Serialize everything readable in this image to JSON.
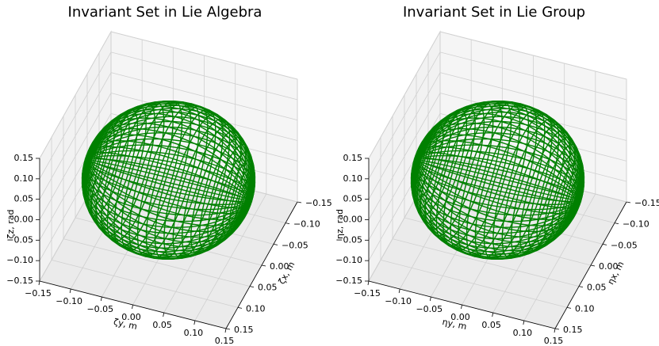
{
  "chart_data": [
    {
      "type": "wireframe3d",
      "title": "Invariant Set in Lie Algebra",
      "xlabel": "ζx, m",
      "ylabel": "ζy, m",
      "zlabel": "ζz, rad",
      "xlim": [
        -0.15,
        0.15
      ],
      "ylim": [
        -0.15,
        0.15
      ],
      "zlim": [
        -0.15,
        0.15
      ],
      "xticks": [
        {
          "value": -0.15,
          "label": "−0.15"
        },
        {
          "value": -0.1,
          "label": "−0.10"
        },
        {
          "value": -0.05,
          "label": "−0.05"
        },
        {
          "value": 0,
          "label": "0.00"
        },
        0.05,
        {
          "value": 0.1,
          "label": "0.10"
        },
        0.15
      ],
      "yticks": [
        {
          "value": -0.15,
          "label": "−0.15"
        },
        {
          "value": -0.1,
          "label": "−0.10"
        },
        {
          "value": -0.05,
          "label": "−0.05"
        },
        {
          "value": 0,
          "label": "0.00"
        },
        0.05,
        {
          "value": 0.1,
          "label": "0.10"
        },
        0.15
      ],
      "zticks": [
        {
          "value": -0.15,
          "label": "−0.15"
        },
        {
          "value": -0.1,
          "label": "−0.10"
        },
        {
          "value": -0.05,
          "label": "−0.05"
        },
        {
          "value": 0,
          "label": "0.00"
        },
        0.05,
        {
          "value": 0.1,
          "label": "0.10"
        },
        0.15
      ],
      "semi_axes": [
        0.13,
        0.13,
        0.13
      ],
      "color": "green",
      "grid": true
    },
    {
      "type": "wireframe3d",
      "title": "Invariant Set in Lie Group",
      "xlabel": "ηx, m",
      "ylabel": "ηy, m",
      "zlabel": "ηz, rad",
      "xlim": [
        -0.15,
        0.15
      ],
      "ylim": [
        -0.15,
        0.15
      ],
      "zlim": [
        -0.15,
        0.15
      ],
      "xticks": [
        {
          "value": -0.15,
          "label": "−0.15"
        },
        {
          "value": -0.1,
          "label": "−0.10"
        },
        {
          "value": -0.05,
          "label": "−0.05"
        },
        {
          "value": 0,
          "label": "0.00"
        },
        0.05,
        {
          "value": 0.1,
          "label": "0.10"
        },
        0.15
      ],
      "yticks": [
        {
          "value": -0.15,
          "label": "−0.15"
        },
        {
          "value": -0.1,
          "label": "−0.10"
        },
        {
          "value": -0.05,
          "label": "−0.05"
        },
        {
          "value": 0,
          "label": "0.00"
        },
        0.05,
        {
          "value": 0.1,
          "label": "0.10"
        },
        0.15
      ],
      "zticks": [
        {
          "value": -0.15,
          "label": "−0.15"
        },
        {
          "value": -0.1,
          "label": "−0.10"
        },
        {
          "value": -0.05,
          "label": "−0.05"
        },
        {
          "value": 0,
          "label": "0.00"
        },
        0.05,
        {
          "value": 0.1,
          "label": "0.10"
        },
        0.15
      ],
      "semi_axes": [
        0.13,
        0.13,
        0.13
      ],
      "color": "green",
      "grid": true
    }
  ]
}
